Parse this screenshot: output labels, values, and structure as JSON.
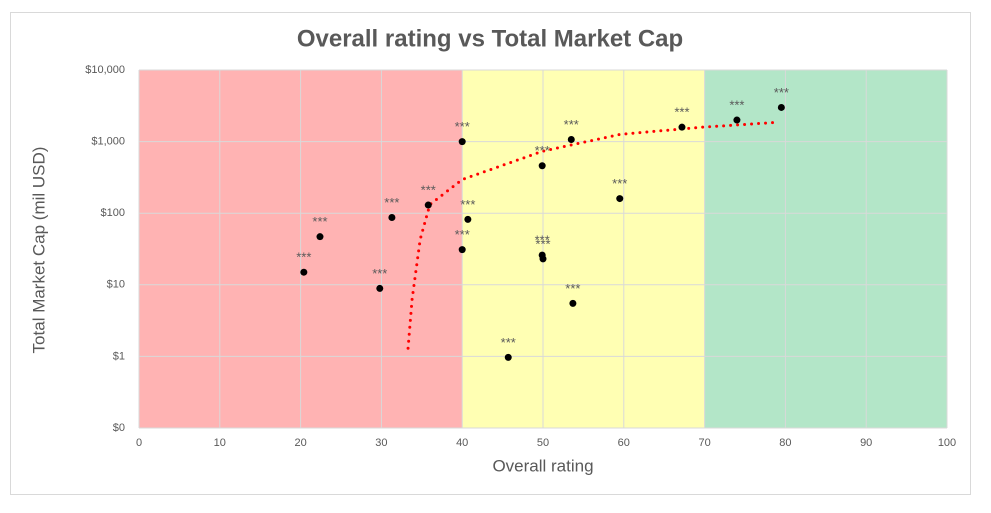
{
  "chart_data": {
    "type": "scatter",
    "title": "Overall rating vs Total Market Cap",
    "xlabel": "Overall rating",
    "ylabel": "Total Market Cap (mil USD)",
    "x": [
      20.4,
      22.4,
      29.8,
      31.3,
      35.8,
      40,
      40,
      40.7,
      45.7,
      49.9,
      49.9,
      50,
      53.5,
      53.7,
      59.5,
      67.2,
      74,
      79.5
    ],
    "values": [
      15,
      47,
      8.9,
      87,
      130,
      1000,
      31,
      82,
      0.97,
      460,
      26,
      23,
      1070,
      5.5,
      160,
      1590,
      2000,
      3000
    ],
    "value_labels": [
      "***",
      "***",
      "***",
      "***",
      "***",
      "***",
      "***",
      "***",
      "***",
      "***",
      "***",
      "***",
      "***",
      "***",
      "***",
      "***",
      "***",
      "***"
    ],
    "color": "#000000",
    "trendline": {
      "color": "#ff0000",
      "x": [
        33.3,
        33.8,
        34.8,
        36,
        40,
        49.9,
        59.5,
        69.4,
        79
      ],
      "values": [
        1.3,
        6.3,
        43,
        132,
        295,
        730,
        1260,
        1580,
        1860
      ]
    },
    "bands": [
      {
        "from": 0,
        "to": 40,
        "color": "#ffb3b3"
      },
      {
        "from": 40,
        "to": 70,
        "color": "#ffffb3"
      },
      {
        "from": 70,
        "to": 100,
        "color": "#b3e6c8"
      }
    ],
    "xlim": [
      0,
      100
    ],
    "xticks": [
      0,
      10,
      20,
      30,
      40,
      50,
      60,
      70,
      80,
      90,
      100
    ],
    "ylog": true,
    "ylim": [
      0.1,
      10000
    ],
    "yticks": [
      {
        "value": 0.1,
        "label": "$0"
      },
      {
        "value": 1,
        "label": "$1"
      },
      {
        "value": 10,
        "label": "$10"
      },
      {
        "value": 100,
        "label": "$100"
      },
      {
        "value": 1000,
        "label": "$1,000"
      },
      {
        "value": 10000,
        "label": "$10,000"
      }
    ],
    "grid": true
  }
}
